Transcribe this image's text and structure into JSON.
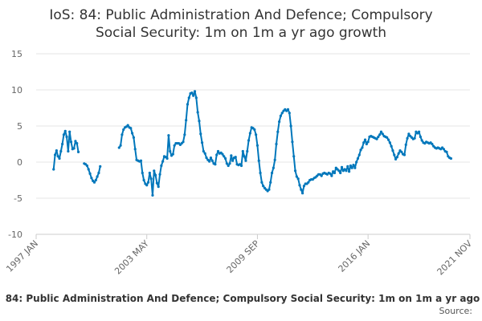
{
  "chart_data": {
    "type": "line",
    "title_line1": "IoS: 84: Public Administration And Defence; Compulsory",
    "title_line2": "Social Security: 1m on 1m a yr ago growth",
    "xlabel": "",
    "ylabel": "",
    "ylim": [
      -10,
      15
    ],
    "yticks": [
      "15",
      "10",
      "5",
      "0",
      "-5",
      "-10"
    ],
    "xticks": [
      "1997 JAN",
      "2003 MAY",
      "2009 SEP",
      "2016 JAN",
      "2021 NOV"
    ],
    "x_range": [
      "1997 JAN",
      "2021 NOV"
    ],
    "grid": true,
    "legend_position": "bottom",
    "line_color": "#0077bb",
    "series": [
      {
        "name": "84: Public Administration And Defence; Compulsory Social Security: 1m on 1m a yr ago",
        "start": "1998 JAN",
        "frequency": "monthly",
        "values": [
          -1.0,
          1.0,
          1.6,
          0.8,
          0.5,
          1.5,
          2.5,
          3.8,
          4.3,
          3.5,
          1.5,
          4.2,
          2.8,
          1.8,
          1.9,
          2.9,
          2.6,
          1.4,
          null,
          null,
          null,
          -0.2,
          -0.3,
          -0.5,
          -1.0,
          -1.6,
          -2.2,
          -2.6,
          -2.8,
          -2.5,
          -2.0,
          -1.5,
          -0.6,
          null,
          null,
          null,
          null,
          null,
          null,
          null,
          null,
          null,
          null,
          null,
          null,
          2.0,
          2.3,
          3.8,
          4.5,
          4.8,
          4.9,
          5.1,
          4.8,
          4.7,
          4.0,
          3.4,
          1.8,
          0.3,
          0.2,
          0.1,
          0.2,
          -1.5,
          -2.5,
          -3.0,
          -3.2,
          -2.8,
          -1.5,
          -2.3,
          -4.6,
          -1.2,
          -1.8,
          -2.9,
          -3.4,
          -1.7,
          -0.5,
          0.1,
          0.8,
          0.7,
          0.5,
          3.7,
          1.5,
          0.9,
          1.1,
          2.3,
          2.6,
          2.6,
          2.6,
          2.4,
          2.6,
          2.8,
          3.8,
          5.8,
          8.0,
          8.9,
          9.5,
          9.6,
          9.2,
          9.8,
          8.9,
          6.9,
          5.7,
          3.9,
          2.7,
          1.5,
          1.2,
          0.6,
          0.3,
          0.1,
          0.6,
          0.2,
          -0.2,
          -0.3,
          1.0,
          1.5,
          1.2,
          1.3,
          1.1,
          0.8,
          0.5,
          -0.2,
          -0.5,
          -0.2,
          0.9,
          0.2,
          0.6,
          0.7,
          -0.3,
          -0.4,
          -0.3,
          -0.5,
          1.5,
          0.8,
          0.2,
          1.5,
          3.0,
          4.0,
          4.8,
          4.7,
          4.5,
          3.8,
          2.3,
          0.2,
          -1.5,
          -2.8,
          -3.3,
          -3.6,
          -3.8,
          -4.0,
          -3.8,
          -2.8,
          -1.5,
          -0.8,
          0.3,
          2.5,
          4.2,
          5.6,
          6.4,
          6.8,
          7.1,
          7.3,
          7.1,
          7.3,
          6.8,
          5.0,
          2.8,
          0.8,
          -1.2,
          -2.0,
          -2.3,
          -3.2,
          -3.8,
          -4.3,
          -3.3,
          -3.0,
          -3.0,
          -2.8,
          -2.5,
          -2.4,
          -2.4,
          -2.2,
          -2.1,
          -1.9,
          -1.7,
          -1.7,
          -1.9,
          -1.6,
          -1.5,
          -1.6,
          -1.7,
          -1.5,
          -1.6,
          -1.9,
          -1.3,
          -1.5,
          -0.8,
          -1.0,
          -1.2,
          -1.5,
          -0.7,
          -1.2,
          -1.0,
          -1.2,
          -0.6,
          -1.3,
          -0.5,
          -0.8,
          -0.4,
          -0.8,
          0.0,
          0.5,
          1.0,
          1.7,
          2.0,
          2.7,
          3.1,
          2.5,
          2.8,
          3.5,
          3.6,
          3.5,
          3.4,
          3.3,
          3.2,
          3.5,
          3.8,
          4.2,
          3.9,
          3.6,
          3.5,
          3.4,
          3.1,
          2.7,
          2.2,
          1.6,
          1.0,
          0.4,
          0.7,
          1.2,
          1.6,
          1.4,
          1.1,
          1.0,
          2.4,
          3.3,
          3.9,
          3.6,
          3.4,
          3.2,
          3.3,
          4.2,
          4.0,
          4.2,
          3.5,
          3.0,
          2.7,
          2.6,
          2.8,
          2.7,
          2.6,
          2.7,
          2.5,
          2.2,
          2.0,
          1.9,
          2.0,
          1.9,
          1.8,
          2.0,
          1.8,
          1.5,
          1.4,
          0.8,
          0.6,
          0.5
        ]
      }
    ]
  },
  "legend": {
    "label": "84: Public Administration And Defence; Compulsory Social Security: 1m on 1m a yr ago"
  },
  "source": {
    "label": "Source:"
  }
}
